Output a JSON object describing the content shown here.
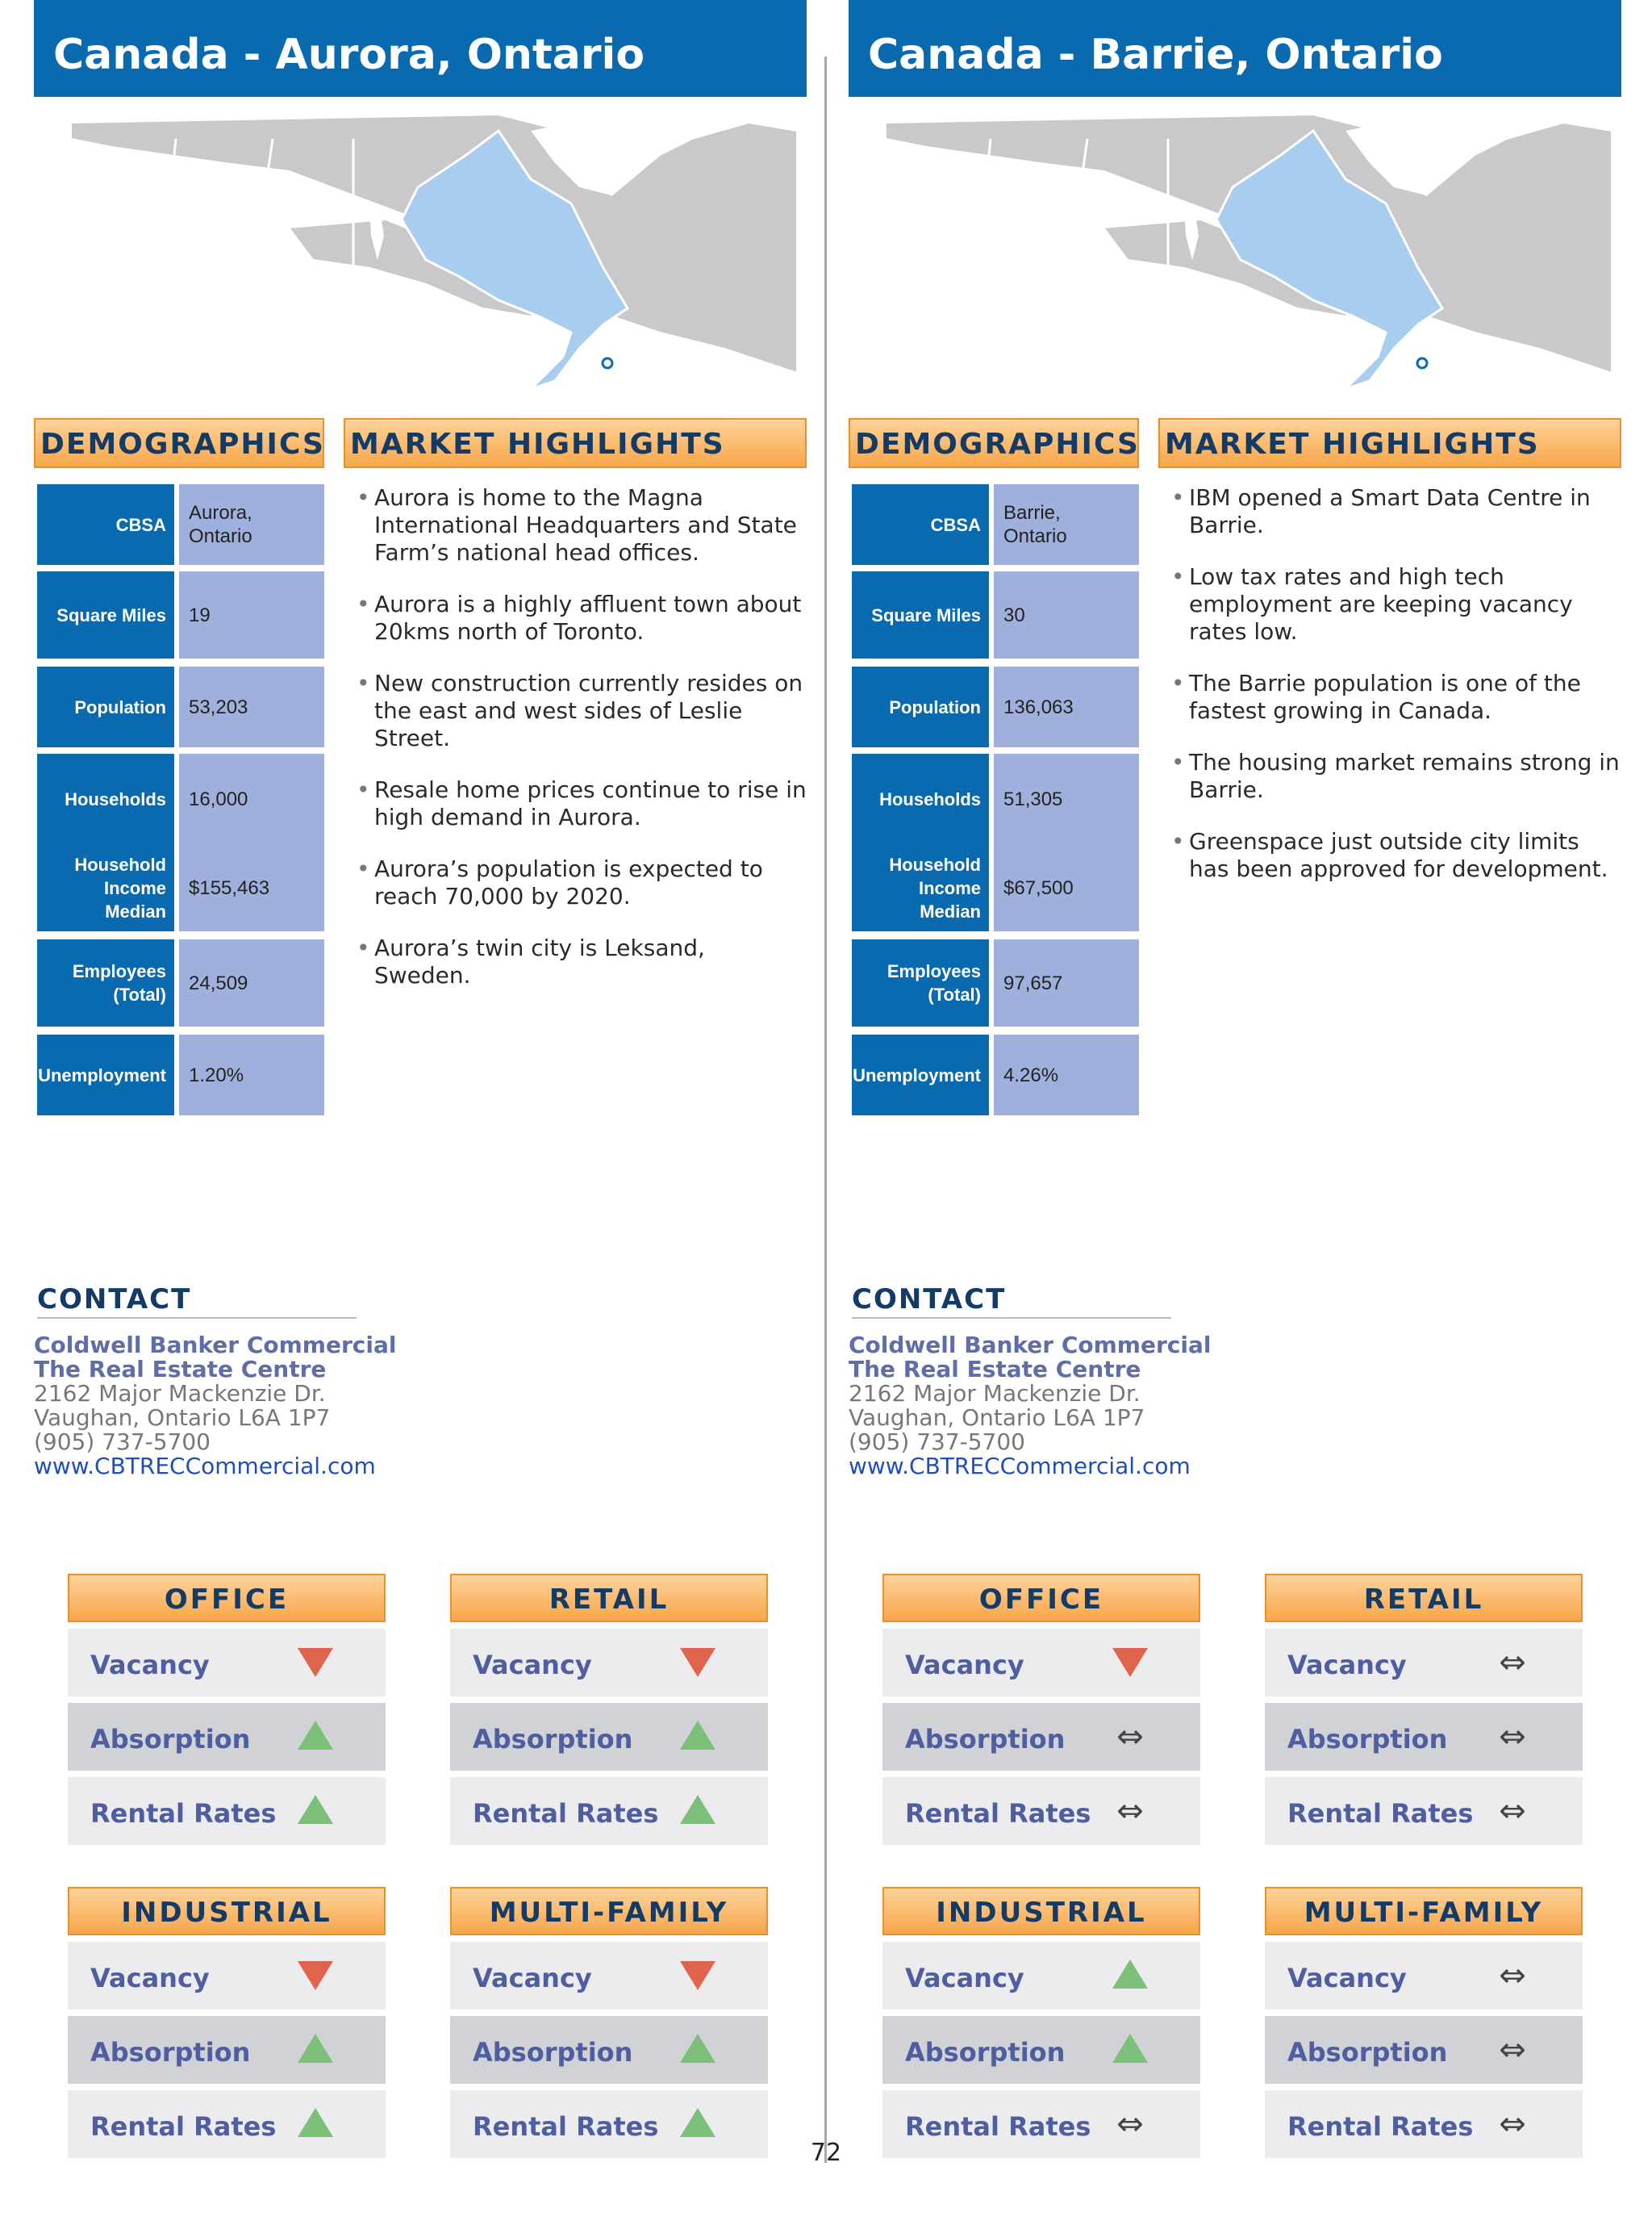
{
  "page_number": "72",
  "panels": [
    {
      "title": "Canada - Aurora, Ontario",
      "demographics_heading": "DEMOGRAPHICS",
      "market_heading": "MARKET HIGHLIGHTS",
      "demographics": [
        {
          "label": "CBSA",
          "value": "Aurora, Ontario"
        },
        {
          "label": "Square Miles",
          "value": "19"
        },
        {
          "label": "Population",
          "value": "53,203"
        },
        {
          "label": "Households",
          "value": "16,000"
        },
        {
          "label": "Household Income Median",
          "value": "$155,463"
        },
        {
          "label": "Employees (Total)",
          "value": "24,509"
        },
        {
          "label": "Unemployment",
          "value": "1.20%"
        }
      ],
      "highlights": [
        "Aurora is home to the Magna International Headquarters and State Farm’s national head offices.",
        "Aurora is a highly affluent town about 20kms north of Toronto.",
        "New construction currently resides on the east and west sides of Leslie Street.",
        "Resale home prices continue to rise in high demand in Aurora.",
        "Aurora’s population is expected to reach 70,000 by 2020.",
        "Aurora’s twin city is Leksand, Sweden."
      ],
      "contact": {
        "heading": "CONTACT",
        "company": "Coldwell Banker Commercial",
        "office": "The Real Estate Centre",
        "address1": "2162 Major Mackenzie Dr.",
        "address2": "Vaughan, Ontario L6A 1P7",
        "phone": "(905) 737-5700",
        "website": "www.CBTRECCommercial.com"
      },
      "sectors": [
        {
          "name": "OFFICE",
          "vacancy_label": "Vacancy",
          "vacancy": "down",
          "absorption_label": "Absorption",
          "absorption": "up",
          "rental_label": "Rental Rates",
          "rental": "up"
        },
        {
          "name": "RETAIL",
          "vacancy_label": "Vacancy",
          "vacancy": "down",
          "absorption_label": "Absorption",
          "absorption": "up",
          "rental_label": "Rental Rates",
          "rental": "up"
        },
        {
          "name": "INDUSTRIAL",
          "vacancy_label": "Vacancy",
          "vacancy": "down",
          "absorption_label": "Absorption",
          "absorption": "up",
          "rental_label": "Rental Rates",
          "rental": "up"
        },
        {
          "name": "MULTI-FAMILY",
          "vacancy_label": "Vacancy",
          "vacancy": "down",
          "absorption_label": "Absorption",
          "absorption": "up",
          "rental_label": "Rental Rates",
          "rental": "up"
        }
      ]
    },
    {
      "title": "Canada - Barrie, Ontario",
      "demographics_heading": "DEMOGRAPHICS",
      "market_heading": "MARKET HIGHLIGHTS",
      "demographics": [
        {
          "label": "CBSA",
          "value": "Barrie, Ontario"
        },
        {
          "label": "Square Miles",
          "value": "30"
        },
        {
          "label": "Population",
          "value": "136,063"
        },
        {
          "label": "Households",
          "value": "51,305"
        },
        {
          "label": "Household Income Median",
          "value": "$67,500"
        },
        {
          "label": "Employees (Total)",
          "value": "97,657"
        },
        {
          "label": "Unemployment",
          "value": "4.26%"
        }
      ],
      "highlights": [
        "IBM opened a Smart Data Centre in Barrie.",
        "Low tax rates and high tech employment are keeping vacancy rates low.",
        "The Barrie population is one of the fastest growing in Canada.",
        "The housing market remains strong in Barrie.",
        "Greenspace just outside city limits has been approved for development."
      ],
      "contact": {
        "heading": "CONTACT",
        "company": "Coldwell Banker Commercial",
        "office": "The Real Estate Centre",
        "address1": "2162 Major Mackenzie Dr.",
        "address2": "Vaughan, Ontario L6A 1P7",
        "phone": "(905) 737-5700",
        "website": "www.CBTRECCommercial.com"
      },
      "sectors": [
        {
          "name": "OFFICE",
          "vacancy_label": "Vacancy",
          "vacancy": "down",
          "absorption_label": "Absorption",
          "absorption": "flat",
          "rental_label": "Rental Rates",
          "rental": "flat"
        },
        {
          "name": "RETAIL",
          "vacancy_label": "Vacancy",
          "vacancy": "flat",
          "absorption_label": "Absorption",
          "absorption": "flat",
          "rental_label": "Rental Rates",
          "rental": "flat"
        },
        {
          "name": "INDUSTRIAL",
          "vacancy_label": "Vacancy",
          "vacancy": "up",
          "absorption_label": "Absorption",
          "absorption": "up",
          "rental_label": "Rental Rates",
          "rental": "flat"
        },
        {
          "name": "MULTI-FAMILY",
          "vacancy_label": "Vacancy",
          "vacancy": "flat",
          "absorption_label": "Absorption",
          "absorption": "flat",
          "rental_label": "Rental Rates",
          "rental": "flat"
        }
      ]
    }
  ],
  "colors": {
    "title_bar": "#0a6aaf",
    "ontario_highlight": "#a9cdee",
    "map_land": "#c9c9cb",
    "trend_up": "#7bbf78",
    "trend_down": "#e0644b"
  }
}
